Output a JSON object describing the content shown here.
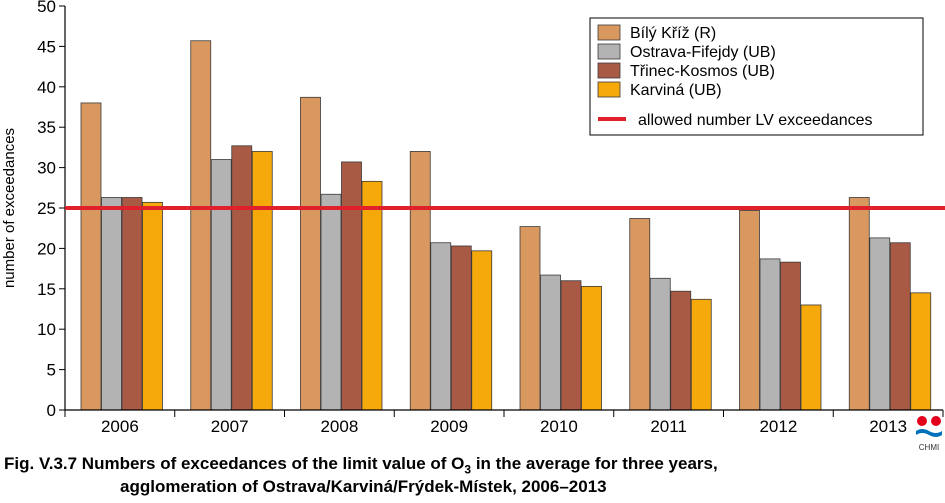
{
  "caption": {
    "line1_prefix": "Fig. V.3.7  Numbers of exceedances of the limit value of O",
    "line1_sub": "3",
    "line1_suffix": " in the average for three years,",
    "line2": "agglomeration of Ostrava/Karviná/Frýdek-Místek, 2006–2013"
  },
  "logo": {
    "text": "CHMI",
    "colors": [
      "#e3001b",
      "#0072bc"
    ]
  },
  "chart_data": {
    "type": "bar",
    "categories": [
      "2006",
      "2007",
      "2008",
      "2009",
      "2010",
      "2011",
      "2012",
      "2013"
    ],
    "ylabel": "number of exceedances",
    "xlabel": "",
    "ylim": [
      0,
      50
    ],
    "yticks": [
      0,
      5,
      10,
      15,
      20,
      25,
      30,
      35,
      40,
      45,
      50
    ],
    "grid": false,
    "legend_position": "top-right",
    "series": [
      {
        "name": "Bílý Kříž (R)",
        "color": "#d9985f",
        "values": [
          38.0,
          45.7,
          38.7,
          32.0,
          22.7,
          23.7,
          24.7,
          26.3
        ]
      },
      {
        "name": "Ostrava-Fifejdy (UB)",
        "color": "#b3b3b3",
        "values": [
          26.3,
          31.0,
          26.7,
          20.7,
          16.7,
          16.3,
          18.7,
          21.3
        ]
      },
      {
        "name": "Třinec-Kosmos (UB)",
        "color": "#a85a45",
        "values": [
          26.3,
          32.7,
          30.7,
          20.3,
          16.0,
          14.7,
          18.3,
          20.7
        ]
      },
      {
        "name": "Karviná (UB)",
        "color": "#f5a90a",
        "values": [
          25.7,
          32.0,
          28.3,
          19.7,
          15.3,
          13.7,
          13.0,
          14.5
        ]
      }
    ],
    "reference_line": {
      "name": "allowed number LV exceedances",
      "value": 25,
      "color": "#e0202a"
    }
  }
}
